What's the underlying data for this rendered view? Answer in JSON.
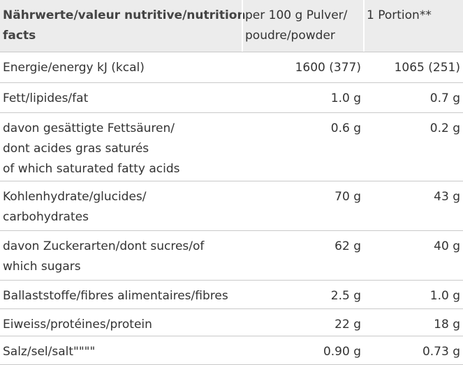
{
  "header": {
    "col1": [
      "Nährwerte/valeur nutritive/nutrition",
      "facts"
    ],
    "col2": [
      "per 100 g Pulver/",
      "poudre/powder"
    ],
    "col3": [
      "1 Portion**"
    ]
  },
  "rows": [
    {
      "label": [
        "Energie/energy kJ (kcal)"
      ],
      "per100": "1600 (377)",
      "portion": "1065 (251)"
    },
    {
      "label": [
        "Fett/lipides/fat"
      ],
      "per100": "1.0 g",
      "portion": "0.7 g"
    },
    {
      "label": [
        "davon gesättigte Fettsäuren/",
        "dont acides gras saturés",
        "of which saturated fatty acids"
      ],
      "per100": "0.6 g",
      "portion": "0.2 g"
    },
    {
      "label": [
        "Kohlenhydrate/glucides/",
        "carbohydrates"
      ],
      "per100": "70 g",
      "portion": "43 g"
    },
    {
      "label": [
        "davon Zuckerarten/dont sucres/of",
        "which sugars"
      ],
      "per100": "62 g",
      "portion": "40 g"
    },
    {
      "label": [
        "Ballaststoffe/fibres alimentaires/fibres"
      ],
      "per100": "2.5 g",
      "portion": "1.0 g"
    },
    {
      "label": [
        "Eiweiss/protéines/protein"
      ],
      "per100": "22 g",
      "portion": "18 g"
    },
    {
      "label": [
        "Salz/sel/salt\"\"\"\""
      ],
      "per100": "0.90 g",
      "portion": "0.73 g"
    }
  ]
}
